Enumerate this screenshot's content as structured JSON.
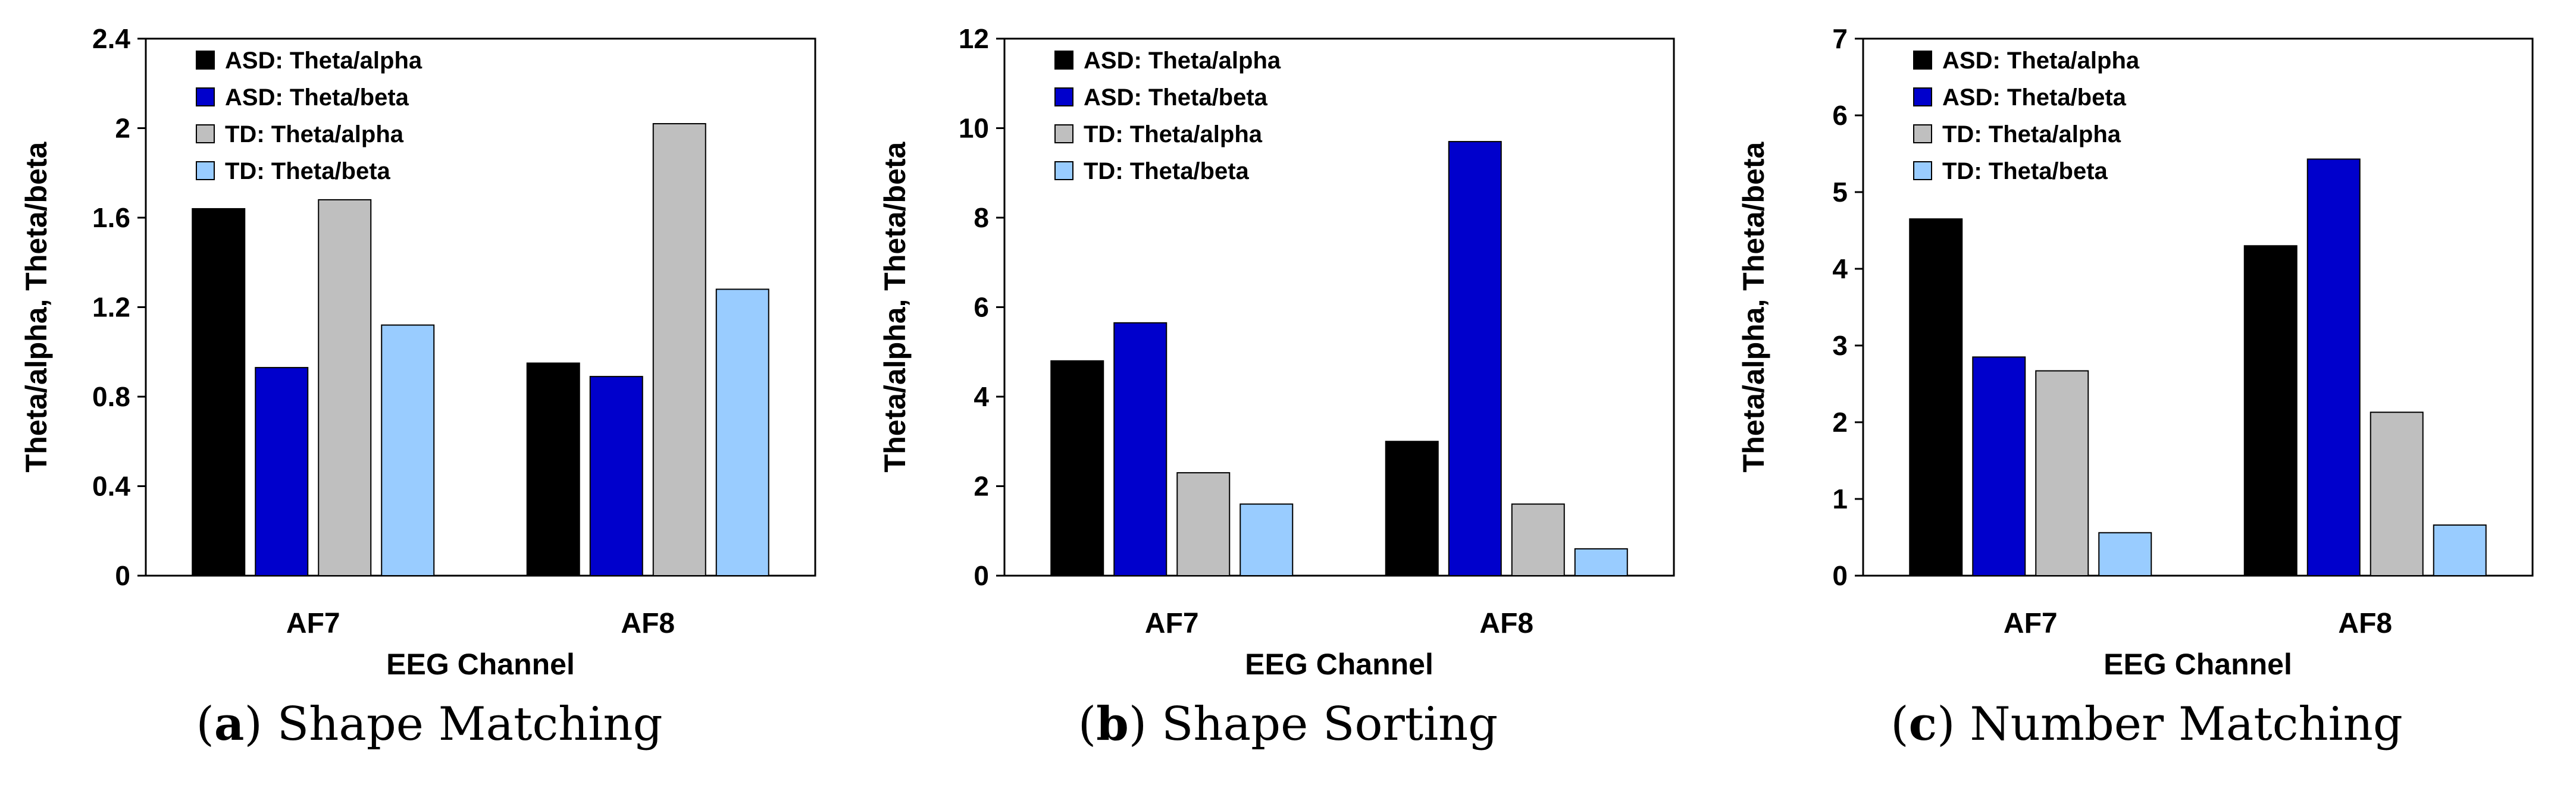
{
  "colors": {
    "ASD: Theta/alpha": "#000000",
    "ASD: Theta/beta": "#0000cc",
    "TD: Theta/alpha": "#bfbfbf",
    "TD: Theta/beta": "#99ccff"
  },
  "chart_data": [
    {
      "type": "bar",
      "caption_letter": "a",
      "caption_text": "Shape Matching",
      "categories": [
        "AF7",
        "AF8"
      ],
      "xlabel": "EEG Channel",
      "ylabel": "Theta/alpha, Theta/beta",
      "ylim": [
        0,
        2.4
      ],
      "yticks": [
        0,
        0.4,
        0.8,
        1.2,
        1.6,
        2,
        2.4
      ],
      "ytick_labels": [
        "0",
        "0.4",
        "0.8",
        "1.2",
        "1.6",
        "2",
        "2.4"
      ],
      "legend_position": "top-left",
      "grid": false,
      "series": [
        {
          "name": "ASD: Theta/alpha",
          "values": [
            1.64,
            0.95
          ]
        },
        {
          "name": "ASD: Theta/beta",
          "values": [
            0.93,
            0.89
          ]
        },
        {
          "name": "TD: Theta/alpha",
          "values": [
            1.68,
            2.02
          ]
        },
        {
          "name": "TD: Theta/beta",
          "values": [
            1.12,
            1.28
          ]
        }
      ]
    },
    {
      "type": "bar",
      "caption_letter": "b",
      "caption_text": "Shape Sorting",
      "categories": [
        "AF7",
        "AF8"
      ],
      "xlabel": "EEG Channel",
      "ylabel": "Theta/alpha, Theta/beta",
      "ylim": [
        0,
        12
      ],
      "yticks": [
        0,
        2,
        4,
        6,
        8,
        10,
        12
      ],
      "ytick_labels": [
        "0",
        "2",
        "4",
        "6",
        "8",
        "10",
        "12"
      ],
      "legend_position": "top-left",
      "grid": false,
      "series": [
        {
          "name": "ASD: Theta/alpha",
          "values": [
            4.8,
            3.0
          ]
        },
        {
          "name": "ASD: Theta/beta",
          "values": [
            5.65,
            9.7
          ]
        },
        {
          "name": "TD: Theta/alpha",
          "values": [
            2.3,
            1.6
          ]
        },
        {
          "name": "TD: Theta/beta",
          "values": [
            1.6,
            0.6
          ]
        }
      ]
    },
    {
      "type": "bar",
      "caption_letter": "c",
      "caption_text": "Number Matching",
      "categories": [
        "AF7",
        "AF8"
      ],
      "xlabel": "EEG Channel",
      "ylabel": "Theta/alpha, Theta/beta",
      "ylim": [
        0,
        7
      ],
      "yticks": [
        0,
        1,
        2,
        3,
        4,
        5,
        6,
        7
      ],
      "ytick_labels": [
        "0",
        "1",
        "2",
        "3",
        "4",
        "5",
        "6",
        "7"
      ],
      "legend_position": "top-left",
      "grid": false,
      "series": [
        {
          "name": "ASD: Theta/alpha",
          "values": [
            4.65,
            4.3
          ]
        },
        {
          "name": "ASD: Theta/beta",
          "values": [
            2.85,
            5.43
          ]
        },
        {
          "name": "TD: Theta/alpha",
          "values": [
            2.67,
            2.13
          ]
        },
        {
          "name": "TD: Theta/beta",
          "values": [
            0.56,
            0.66
          ]
        }
      ]
    }
  ]
}
